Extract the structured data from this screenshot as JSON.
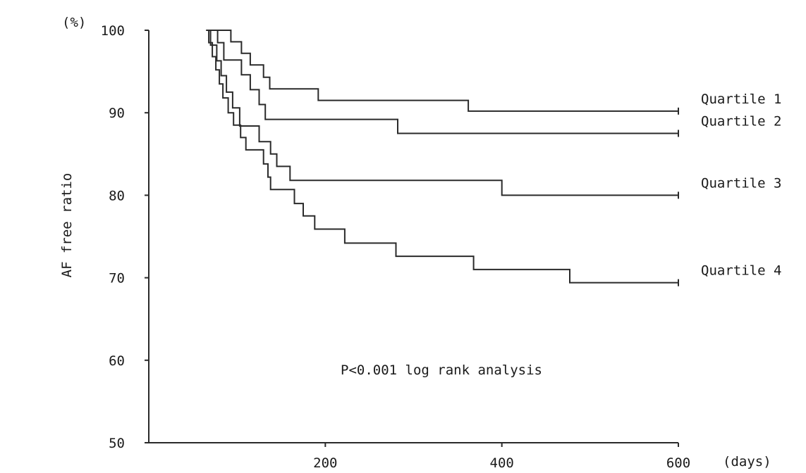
{
  "chart_data": {
    "type": "line",
    "title": "",
    "ylabel": "AF free ratio",
    "ylabel_unit": "(%)",
    "xlabel_unit": "(days)",
    "xlim": [
      0,
      600
    ],
    "ylim": [
      50,
      100
    ],
    "x_ticks": [
      200,
      400,
      600
    ],
    "y_ticks": [
      50,
      60,
      70,
      80,
      90,
      100
    ],
    "grid": false,
    "line_color": "#2a2a2a",
    "annotation": "P<0.001 log rank analysis",
    "series": [
      {
        "name": "Quartile 1",
        "points": [
          [
            65,
            100
          ],
          [
            93,
            100
          ],
          [
            93,
            98.6
          ],
          [
            105,
            98.6
          ],
          [
            105,
            97.2
          ],
          [
            115,
            97.2
          ],
          [
            115,
            95.8
          ],
          [
            130,
            95.8
          ],
          [
            130,
            94.3
          ],
          [
            137,
            94.3
          ],
          [
            137,
            92.9
          ],
          [
            192,
            92.9
          ],
          [
            192,
            91.5
          ],
          [
            362,
            91.5
          ],
          [
            362,
            90.2
          ],
          [
            600,
            90.2
          ]
        ]
      },
      {
        "name": "Quartile 2",
        "points": [
          [
            65,
            100
          ],
          [
            78,
            100
          ],
          [
            78,
            98.5
          ],
          [
            85,
            98.5
          ],
          [
            85,
            96.4
          ],
          [
            105,
            96.4
          ],
          [
            105,
            94.6
          ],
          [
            115,
            94.6
          ],
          [
            115,
            92.8
          ],
          [
            125,
            92.8
          ],
          [
            125,
            91.0
          ],
          [
            132,
            91.0
          ],
          [
            132,
            89.2
          ],
          [
            282,
            89.2
          ],
          [
            282,
            87.5
          ],
          [
            600,
            87.5
          ]
        ]
      },
      {
        "name": "Quartile 3",
        "points": [
          [
            65,
            100
          ],
          [
            70,
            100
          ],
          [
            70,
            98.2
          ],
          [
            77,
            98.2
          ],
          [
            77,
            96.3
          ],
          [
            82,
            96.3
          ],
          [
            82,
            94.5
          ],
          [
            88,
            94.5
          ],
          [
            88,
            92.5
          ],
          [
            95,
            92.5
          ],
          [
            95,
            90.6
          ],
          [
            103,
            90.6
          ],
          [
            103,
            88.4
          ],
          [
            125,
            88.4
          ],
          [
            125,
            86.5
          ],
          [
            138,
            86.5
          ],
          [
            138,
            85.0
          ],
          [
            145,
            85.0
          ],
          [
            145,
            83.5
          ],
          [
            160,
            83.5
          ],
          [
            160,
            81.8
          ],
          [
            400,
            81.8
          ],
          [
            400,
            80.0
          ],
          [
            600,
            80.0
          ]
        ]
      },
      {
        "name": "Quartile 4",
        "points": [
          [
            65,
            100
          ],
          [
            68,
            100
          ],
          [
            68,
            98.5
          ],
          [
            72,
            98.5
          ],
          [
            72,
            96.8
          ],
          [
            76,
            96.8
          ],
          [
            76,
            95.2
          ],
          [
            80,
            95.2
          ],
          [
            80,
            93.5
          ],
          [
            84,
            93.5
          ],
          [
            84,
            91.8
          ],
          [
            90,
            91.8
          ],
          [
            90,
            90.0
          ],
          [
            96,
            90.0
          ],
          [
            96,
            88.5
          ],
          [
            104,
            88.5
          ],
          [
            104,
            87.0
          ],
          [
            110,
            87.0
          ],
          [
            110,
            85.5
          ],
          [
            130,
            85.5
          ],
          [
            130,
            83.8
          ],
          [
            135,
            83.8
          ],
          [
            135,
            82.2
          ],
          [
            138,
            82.2
          ],
          [
            138,
            80.7
          ],
          [
            165,
            80.7
          ],
          [
            165,
            79.0
          ],
          [
            175,
            79.0
          ],
          [
            175,
            77.5
          ],
          [
            188,
            77.5
          ],
          [
            188,
            75.9
          ],
          [
            222,
            75.9
          ],
          [
            222,
            74.2
          ],
          [
            280,
            74.2
          ],
          [
            280,
            72.6
          ],
          [
            368,
            72.6
          ],
          [
            368,
            71.0
          ],
          [
            477,
            71.0
          ],
          [
            477,
            69.4
          ],
          [
            600,
            69.4
          ]
        ]
      }
    ]
  }
}
